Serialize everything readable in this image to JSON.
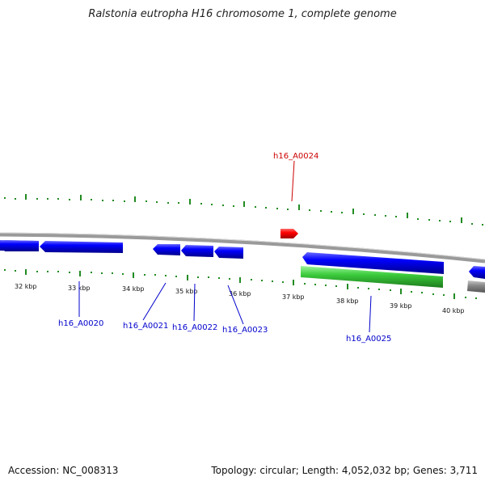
{
  "title": "Ralstonia eutropha H16 chromosome 1, complete genome",
  "footer": {
    "accession": "Accession: NC_008313",
    "summary": "Topology: circular; Length: 4,052,032 bp; Genes: 3,711"
  },
  "scale_labels": [
    "32 kbp",
    "33 kbp",
    "34 kbp",
    "35 kbp",
    "36 kbp",
    "37 kbp",
    "38 kbp",
    "39 kbp",
    "40 kbp"
  ],
  "genes": {
    "top": [
      {
        "name": "h16_A0024",
        "color": "#cc0000"
      }
    ],
    "bottom": [
      {
        "name": "h16_A0020",
        "color": "#0000cc"
      },
      {
        "name": "h16_A0021",
        "color": "#0000cc"
      },
      {
        "name": "h16_A0022",
        "color": "#0000cc"
      },
      {
        "name": "h16_A0023",
        "color": "#0000cc"
      },
      {
        "name": "h16_A0025",
        "color": "#0000cc"
      }
    ]
  },
  "colors": {
    "backbone": "#808080",
    "cds_blue": "#0000ff",
    "cds_red": "#ff0000",
    "cds_green": "#33cc33",
    "cds_gray": "#808080",
    "tick_green": "#228b22"
  }
}
